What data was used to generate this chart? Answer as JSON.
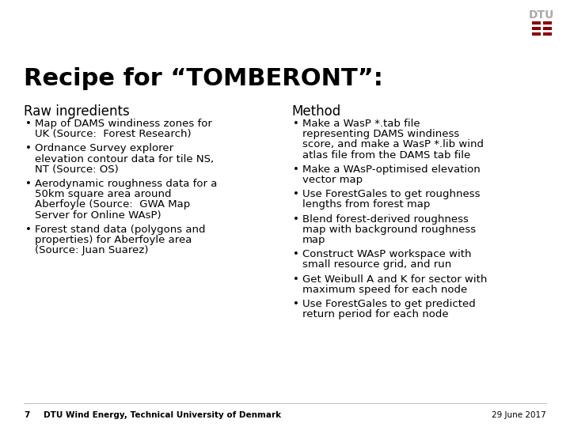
{
  "title": "Recipe for “TOMBERONT”:",
  "title_fontsize": 22,
  "bg_color": "#ffffff",
  "text_color": "#000000",
  "col1_header": "Raw ingredients",
  "col2_header": "Method",
  "header_fontsize": 12,
  "body_fontsize": 9.5,
  "col1_bullets": [
    [
      "Map of DAMS windiness zones for",
      "UK (Source:  Forest Research)"
    ],
    [
      "Ordnance Survey explorer",
      "elevation contour data for tile NS,",
      "NT (Source: OS)"
    ],
    [
      "Aerodynamic roughness data for a",
      "50km square area around",
      "Aberfoyle (Source:  GWA Map",
      "Server for Online WAsP)"
    ],
    [
      "Forest stand data (polygons and",
      "properties) for Aberfoyle area",
      "(Source: Juan Suarez)"
    ]
  ],
  "col2_bullets": [
    [
      "Make a WasP *.tab file",
      "representing DAMS windiness",
      "score, and make a WasP *.lib wind",
      "atlas file from the DAMS tab file"
    ],
    [
      "Make a WAsP-optimised elevation",
      "vector map"
    ],
    [
      "Use ForestGales to get roughness",
      "lengths from forest map"
    ],
    [
      "Blend forest-derived roughness",
      "map with background roughness",
      "map"
    ],
    [
      "Construct WAsP workspace with",
      "small resource grid, and run"
    ],
    [
      "Get Weibull A and K for sector with",
      "maximum speed for each node"
    ],
    [
      "Use ForestGales to get predicted",
      "return period for each node"
    ]
  ],
  "footer_left_number": "7",
  "footer_left_text": "DTU Wind Energy, Technical University of Denmark",
  "footer_right_text": "29 June 2017",
  "footer_fontsize": 7.5,
  "dtu_text_color": "#aaaaaa",
  "dtu_bar_color": "#8b0000",
  "bullet_char": "•"
}
